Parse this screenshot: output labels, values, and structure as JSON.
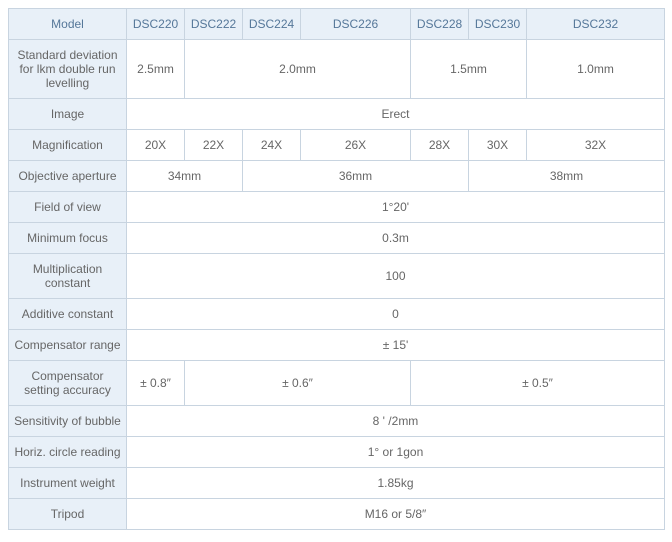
{
  "table": {
    "headers": [
      "Model",
      "DSC220",
      "DSC222",
      "DSC224",
      "DSC226",
      "DSC228",
      "DSC230",
      "DSC232"
    ],
    "rows": {
      "std_dev": {
        "label": "Standard deviation for lkm double run levelling",
        "v1": "2.5mm",
        "v2": "2.0mm",
        "v3": "1.5mm",
        "v4": "1.0mm"
      },
      "image": {
        "label": "Image",
        "val": "Erect"
      },
      "mag": {
        "label": "Magnification",
        "v1": "20X",
        "v2": "22X",
        "v3": "24X",
        "v4": "26X",
        "v5": "28X",
        "v6": "30X",
        "v7": "32X"
      },
      "aperture": {
        "label": "Objective aperture",
        "v1": "34mm",
        "v2": "36mm",
        "v3": "38mm"
      },
      "fov": {
        "label": "Field of view",
        "val": "1°20'"
      },
      "minfocus": {
        "label": "Minimum focus",
        "val": "0.3m"
      },
      "multconst": {
        "label": "Multiplication constant",
        "val": "100"
      },
      "addconst": {
        "label": "Additive constant",
        "val": "0"
      },
      "comprange": {
        "label": "Compensator range",
        "val": "± 15'"
      },
      "compacc": {
        "label": "Compensator setting accuracy",
        "v1": "± 0.8″",
        "v2": "± 0.6″",
        "v3": "± 0.5″"
      },
      "bubble": {
        "label": "Sensitivity of bubble",
        "val": "8 ' /2mm"
      },
      "horiz": {
        "label": "Horiz. circle reading",
        "val": "1° or 1gon"
      },
      "weight": {
        "label": "Instrument weight",
        "val": "1.85kg"
      },
      "tripod": {
        "label": "Tripod",
        "val": "M16 or 5/8″"
      }
    }
  },
  "colors": {
    "header_bg": "#e8f0f8",
    "header_text": "#557799",
    "cell_text": "#666666",
    "border": "#c8d4e0",
    "bg": "#ffffff"
  }
}
